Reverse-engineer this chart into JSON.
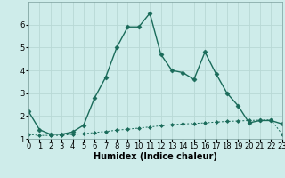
{
  "xlabel": "Humidex (Indice chaleur)",
  "background_color": "#ceecea",
  "grid_color": "#b8d8d5",
  "line_color": "#1a6b5a",
  "x_labels": [
    "0",
    "1",
    "2",
    "3",
    "4",
    "5",
    "6",
    "7",
    "8",
    "9",
    "10",
    "11",
    "12",
    "13",
    "14",
    "15",
    "16",
    "17",
    "18",
    "19",
    "20",
    "21",
    "22",
    "23"
  ],
  "series1_x": [
    0,
    1,
    2,
    3,
    4,
    5,
    6,
    7,
    8,
    9,
    10,
    11,
    12,
    13,
    14,
    15,
    16,
    17,
    18,
    19,
    20,
    21,
    22,
    23
  ],
  "series1_y": [
    2.2,
    1.4,
    1.2,
    1.2,
    1.3,
    1.6,
    2.8,
    3.7,
    5.0,
    5.9,
    5.9,
    6.5,
    4.7,
    4.0,
    3.9,
    3.6,
    4.8,
    3.85,
    3.0,
    2.45,
    1.7,
    1.8,
    1.8,
    1.65
  ],
  "series2_x": [
    0,
    1,
    2,
    3,
    4,
    5,
    6,
    7,
    8,
    9,
    10,
    11,
    12,
    13,
    14,
    15,
    16,
    17,
    18,
    19,
    20,
    21,
    22,
    23
  ],
  "series2_y": [
    1.2,
    1.15,
    1.15,
    1.15,
    1.2,
    1.22,
    1.28,
    1.32,
    1.38,
    1.42,
    1.47,
    1.52,
    1.57,
    1.62,
    1.65,
    1.67,
    1.7,
    1.73,
    1.76,
    1.78,
    1.8,
    1.82,
    1.83,
    1.2
  ],
  "ylim": [
    1.0,
    7.0
  ],
  "xlim": [
    0,
    23
  ],
  "yticks": [
    1,
    2,
    3,
    4,
    5,
    6
  ],
  "label_fontsize": 7,
  "tick_fontsize": 6
}
